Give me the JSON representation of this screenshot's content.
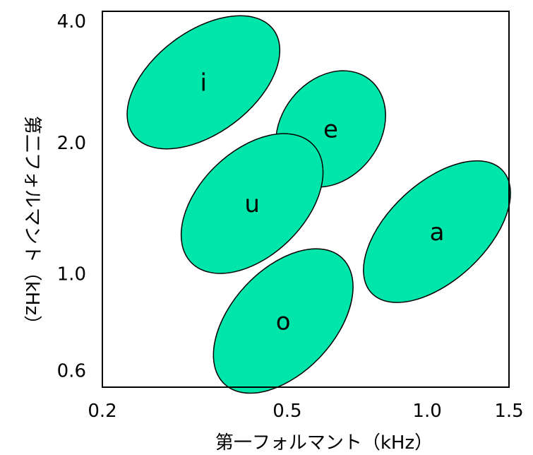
{
  "chart_data": {
    "type": "scatter",
    "x_scale": "log",
    "y_scale": "log",
    "xlim": [
      0.2,
      1.5
    ],
    "ylim": [
      0.55,
      4.0
    ],
    "x_ticks": [
      {
        "value": 0.2,
        "label": "0.2"
      },
      {
        "value": 0.5,
        "label": "0.5"
      },
      {
        "value": 1.0,
        "label": "1.0"
      },
      {
        "value": 1.5,
        "label": "1.5"
      }
    ],
    "y_ticks": [
      {
        "value": 4.0,
        "label": "4.0"
      },
      {
        "value": 2.0,
        "label": "2.0"
      },
      {
        "value": 1.0,
        "label": "1.0"
      },
      {
        "value": 0.6,
        "label": "0.6"
      }
    ],
    "xlabel": "第一フォルマント（kHz）",
    "ylabel": "第二フォルマント（kHz）",
    "grid": false,
    "legend": "none",
    "fill_color": "#00E5AA",
    "edge_color": "#000000",
    "vowels": [
      {
        "label": "i",
        "f1": 0.33,
        "f2": 2.75
      },
      {
        "label": "e",
        "f1": 0.62,
        "f2": 2.15
      },
      {
        "label": "u",
        "f1": 0.42,
        "f2": 1.45
      },
      {
        "label": "a",
        "f1": 1.05,
        "f2": 1.25
      },
      {
        "label": "o",
        "f1": 0.49,
        "f2": 0.78
      }
    ]
  }
}
